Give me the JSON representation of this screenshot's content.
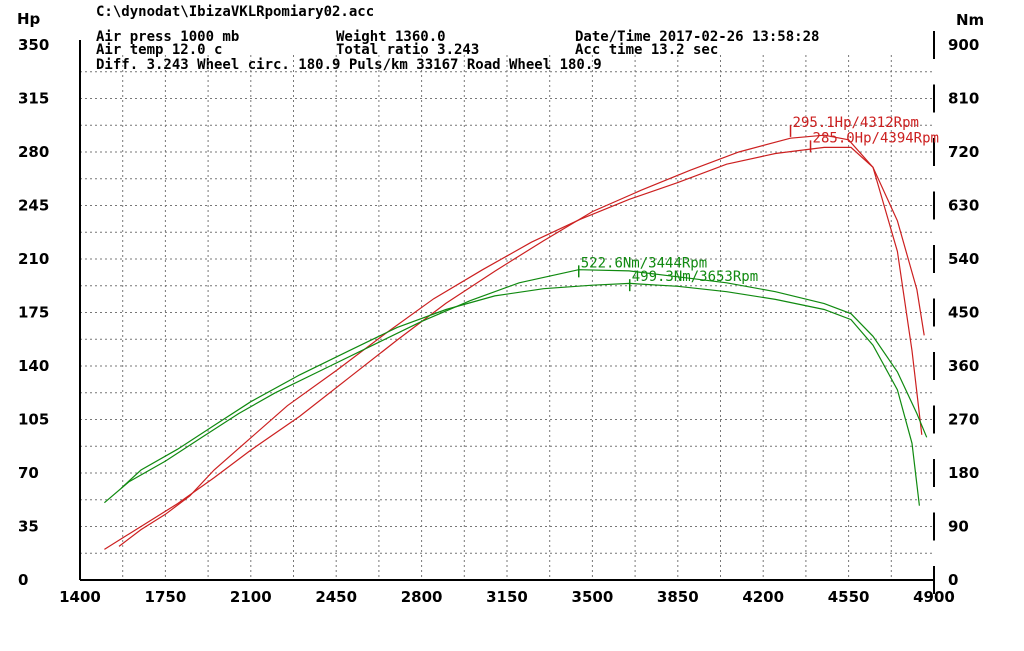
{
  "header": {
    "file": "C:\\dynodat\\IbizaVKLRpomiary02.acc",
    "air_press": "Air press  1000 mb",
    "air_temp": "Air temp  12.0 c",
    "weight": "Weight  1360.0",
    "total_ratio": "Total ratio 3.243",
    "datetime": "Date/Time  2017-02-26 13:58:28",
    "acc_time": "Acc time  13.2 sec",
    "diff_line": "Diff.   3.243  Wheel circ. 180.9  Puls/km  33167  Road Wheel 180.9"
  },
  "chart_data": {
    "type": "line",
    "xlabel": "",
    "ylabel": "Hp",
    "y2label": "Nm",
    "xlim": [
      1400,
      4900
    ],
    "ylim": [
      0,
      350
    ],
    "y2lim": [
      0,
      900
    ],
    "x_ticks": [
      "1400",
      "1750",
      "2100",
      "2450",
      "2800",
      "3150",
      "3500",
      "3850",
      "4200",
      "4550",
      "4900"
    ],
    "y_ticks": [
      "0",
      "35",
      "70",
      "105",
      "140",
      "175",
      "210",
      "245",
      "280",
      "315",
      "350"
    ],
    "y2_ticks": [
      "0",
      "90",
      "180",
      "270",
      "360",
      "450",
      "540",
      "630",
      "720",
      "810",
      "900"
    ],
    "grid": true,
    "colors": {
      "power": "#cc2020",
      "torque": "#108a10"
    },
    "series": [
      {
        "kind": "power",
        "axis": "left",
        "x": [
          1560,
          1650,
          1750,
          1850,
          1950,
          2100,
          2250,
          2450,
          2650,
          2850,
          3050,
          3250,
          3450,
          3650,
          3850,
          4050,
          4250,
          4450,
          4560,
          4650,
          4750,
          4810,
          4850
        ],
        "y": [
          22,
          33,
          43,
          55,
          72,
          93,
          114,
          137,
          161,
          184,
          203,
          221,
          236,
          249,
          260,
          272,
          279,
          283,
          283,
          270,
          215,
          150,
          95
        ]
      },
      {
        "kind": "power",
        "axis": "left",
        "x": [
          1500,
          1600,
          1700,
          1800,
          1950,
          2100,
          2300,
          2500,
          2700,
          2900,
          3100,
          3300,
          3500,
          3700,
          3900,
          4100,
          4312,
          4450,
          4550,
          4650,
          4750,
          4830,
          4860
        ],
        "y": [
          20,
          30,
          40,
          50,
          67,
          85,
          107,
          132,
          157,
          181,
          202,
          222,
          241,
          255,
          268,
          280,
          289,
          291,
          288,
          270,
          235,
          190,
          160
        ]
      },
      {
        "kind": "torque",
        "axis": "right",
        "x": [
          1570,
          1650,
          1800,
          1950,
          2100,
          2300,
          2500,
          2700,
          2900,
          3100,
          3300,
          3500,
          3653,
          3850,
          4050,
          4250,
          4450,
          4560,
          4650,
          4750,
          4810,
          4840
        ],
        "y": [
          155,
          185,
          220,
          260,
          300,
          345,
          385,
          425,
          455,
          478,
          490,
          496,
          499,
          494,
          485,
          472,
          455,
          438,
          395,
          320,
          230,
          125
        ]
      },
      {
        "kind": "torque",
        "axis": "right",
        "x": [
          1500,
          1600,
          1750,
          1900,
          2050,
          2200,
          2400,
          2600,
          2800,
          3000,
          3200,
          3444,
          3650,
          3850,
          4050,
          4250,
          4450,
          4560,
          4650,
          4750,
          4830,
          4870
        ],
        "y": [
          130,
          165,
          200,
          240,
          280,
          315,
          355,
          395,
          435,
          470,
          500,
          522,
          520,
          510,
          500,
          485,
          465,
          448,
          410,
          350,
          280,
          240
        ]
      }
    ],
    "annotations": [
      {
        "text": "295.1Hp/4312Rpm",
        "x": 4312,
        "y": 295.1,
        "axis": "left",
        "color": "#cc2020"
      },
      {
        "text": "285.0Hp/4394Rpm",
        "x": 4394,
        "y": 285.0,
        "axis": "left",
        "color": "#cc2020"
      },
      {
        "text": "522.6Nm/3444Rpm",
        "x": 3444,
        "y": 522.6,
        "axis": "right",
        "color": "#108a10"
      },
      {
        "text": "499.3Nm/3653Rpm",
        "x": 3653,
        "y": 499.3,
        "axis": "right",
        "color": "#108a10"
      }
    ]
  }
}
